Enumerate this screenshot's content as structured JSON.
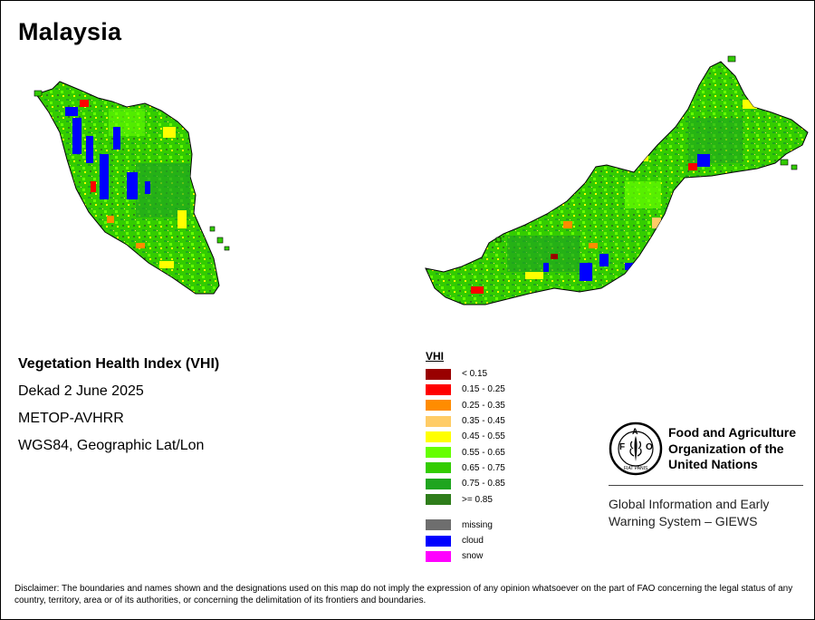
{
  "map": {
    "title": "Malaysia",
    "info": {
      "index_name": "Vegetation Health Index (VHI)",
      "period": "Dekad 2 June 2025",
      "sensor": "METOP-AVHRR",
      "projection": "WGS84, Geographic Lat/Lon"
    },
    "legend": {
      "title": "VHI",
      "classes": [
        {
          "label": "< 0.15",
          "color": "#990000"
        },
        {
          "label": "0.15 - 0.25",
          "color": "#ff0000"
        },
        {
          "label": "0.25 - 0.35",
          "color": "#ff8c00"
        },
        {
          "label": "0.35 - 0.45",
          "color": "#ffcc66"
        },
        {
          "label": "0.45 - 0.55",
          "color": "#ffff00"
        },
        {
          "label": "0.55 - 0.65",
          "color": "#66ff00"
        },
        {
          "label": "0.65 - 0.75",
          "color": "#33cc00"
        },
        {
          "label": "0.75 - 0.85",
          "color": "#1fa51f"
        },
        {
          "label": ">= 0.85",
          "color": "#2e7d1a"
        }
      ],
      "other": [
        {
          "label": "missing",
          "color": "#6e6e6e"
        },
        {
          "label": "cloud",
          "color": "#0000ff"
        },
        {
          "label": "snow",
          "color": "#ff00ff"
        }
      ]
    },
    "organization": {
      "name_line1": "Food and Agriculture",
      "name_line2": "Organization of the",
      "name_line3": "United Nations",
      "logo_text": "FAO",
      "logo_motto": "FIAT PANIS",
      "system_line1": "Global Information and Early",
      "system_line2": "Warning System – GIEWS"
    },
    "disclaimer": "Disclaimer: The boundaries and names shown and the designations used on this map do not imply the expression of any opinion whatsoever on the part of FAO concerning the legal status of any country, territory, area or of its authorities, or concerning the delimitation of its frontiers and boundaries."
  }
}
